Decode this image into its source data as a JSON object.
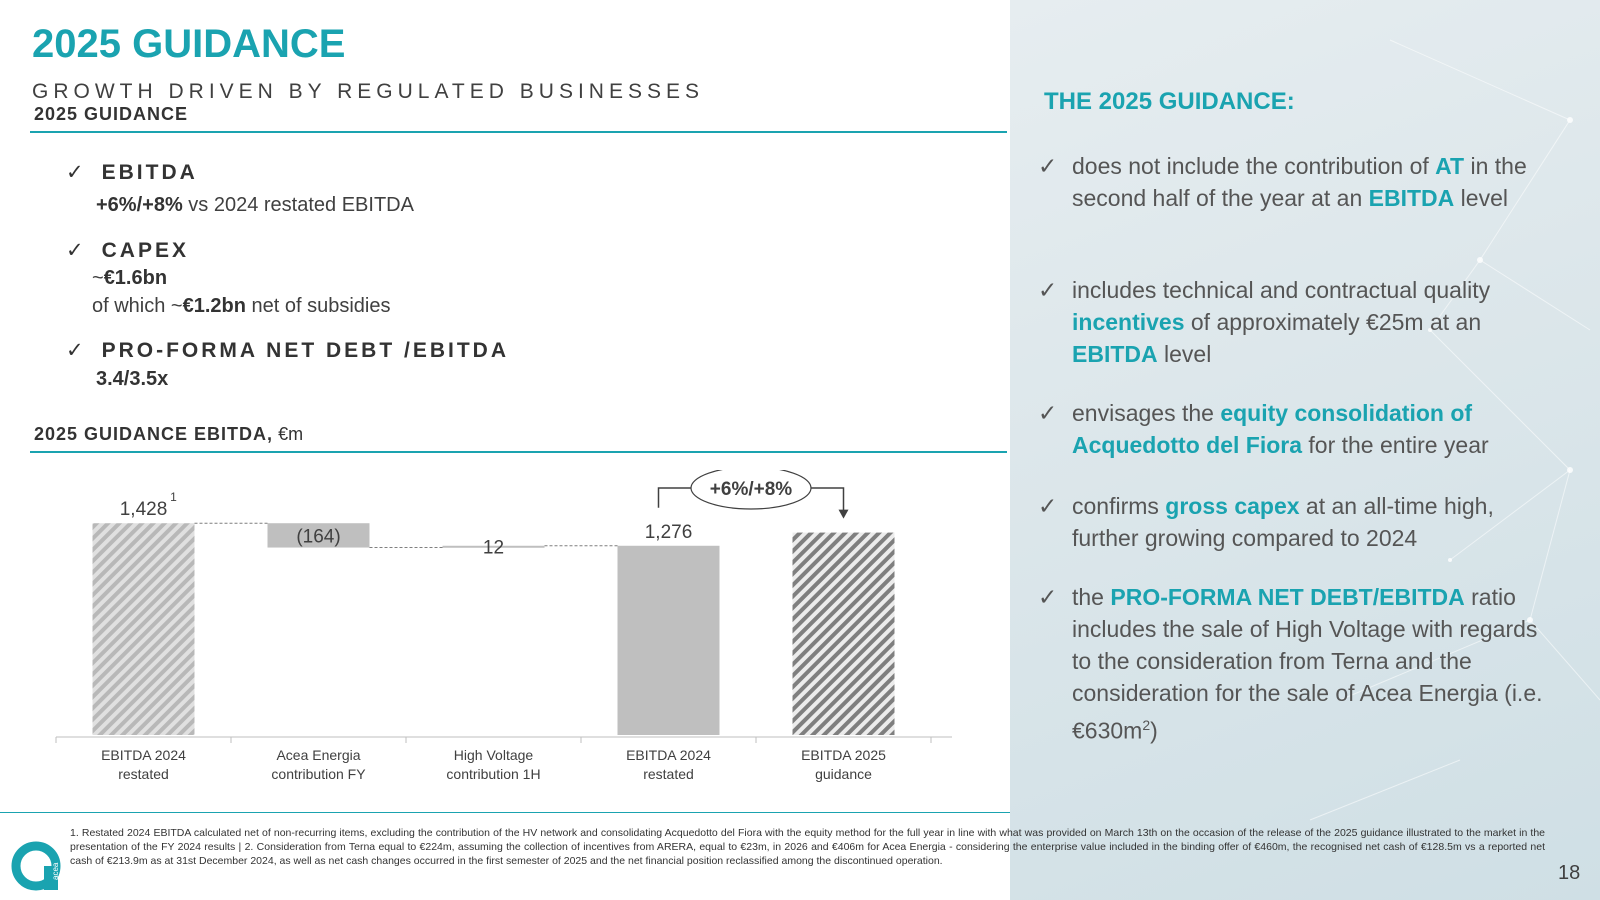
{
  "header": {
    "title": "2025 GUIDANCE",
    "subtitle": "GROWTH DRIVEN BY REGULATED BUSINESSES"
  },
  "left": {
    "section1_label": "2025 GUIDANCE",
    "kpis": [
      {
        "check": "✓",
        "label": "EBITDA"
      },
      {
        "check": "✓",
        "label": "CAPEX"
      },
      {
        "check": "✓",
        "label": "PRO-FORMA NET DEBT /EBITDA"
      }
    ],
    "ebitda_bold": "+6%/+8%",
    "ebitda_rest": " vs 2024 restated EBITDA",
    "capex_line1_prefix": "~",
    "capex_line1_bold": "€1.6bn",
    "capex_line2_prefix": "of which ~",
    "capex_line2_bold": "€1.2bn",
    "capex_line2_rest": " net of subsidies",
    "netdebt_value": "3.4/3.5x",
    "section2_label": "2025 GUIDANCE EBITDA,",
    "section2_unit": " €m"
  },
  "chart_data": {
    "type": "bar",
    "subtype": "waterfall",
    "categories": [
      "EBITDA 2024 restated",
      "Acea Energia contribution FY",
      "High Voltage contribution 1H",
      "EBITDA 2024 restated",
      "EBITDA 2025 guidance"
    ],
    "category_lines": [
      [
        "EBITDA 2024",
        "restated"
      ],
      [
        "Acea Energia",
        "contribution FY"
      ],
      [
        "High Voltage",
        "contribution 1H"
      ],
      [
        "EBITDA 2024",
        "restated"
      ],
      [
        "EBITDA 2025",
        "guidance"
      ]
    ],
    "values": [
      1428,
      -164,
      12,
      1276,
      1365
    ],
    "value_labels": [
      "1,428",
      "(164)",
      "12",
      "1,276",
      ""
    ],
    "footnote_marker": "1",
    "growth_label": "+6%/+8%",
    "ylim": [
      0,
      1500
    ],
    "colors": {
      "hatched": "#b8b8b8",
      "hatched_dark": "#7f7f7f",
      "solid": "#bfbfbf",
      "delta": "#bfbfbf"
    }
  },
  "right": {
    "title": "THE 2025 GUIDANCE:",
    "check": "✓",
    "b1": {
      "t1": "does not include the contribution of ",
      "h1": "AT",
      "t2": " in the second half of the year at an ",
      "h2": "EBITDA",
      "t3": " level"
    },
    "b2": {
      "t1": "includes technical and contractual quality ",
      "h1": "incentives",
      "t2": " of approximately €25m at an ",
      "h2": "EBITDA",
      "t3": " level"
    },
    "b3": {
      "t1": "envisages the ",
      "h1": "equity consolidation of Acquedotto del Fiora",
      "t2": " for the entire year"
    },
    "b4": {
      "t1": "confirms ",
      "h1": "gross capex",
      "t2": " at an all-time high, further growing compared to 2024"
    },
    "b5": {
      "t1": "the ",
      "h1": "PRO-FORMA NET DEBT/EBITDA",
      "t2": " ratio includes the sale of High Voltage with regards to the consideration from Terna and the consideration for the sale of Acea Energia (i.e. €630m",
      "sup": "2",
      "t3": ")"
    }
  },
  "footer": {
    "footnote": "1. Restated 2024 EBITDA calculated net of non-recurring items, excluding the contribution of the HV network and consolidating Acquedotto del Fiora with the equity method for the full year in line with what was provided on March 13th on the occasion of the release of the 2025 guidance illustrated to the market in the presentation of the FY 2024 results | 2. Consideration from Terna equal to €224m, assuming the collection of incentives from ARERA, equal to €23m, in 2026 and €406m for Acea Energia - considering the enterprise value included in the binding offer of €460m, the recognised net cash of €128.5m vs a reported net cash of €213.9m as at 31st December 2024, as well as net cash changes occurred in the first semester of 2025 and the net financial position reclassified among the discontinued operation.",
    "page_number": "18",
    "logo_text": "acea",
    "brand_color": "#1aa3b0"
  }
}
